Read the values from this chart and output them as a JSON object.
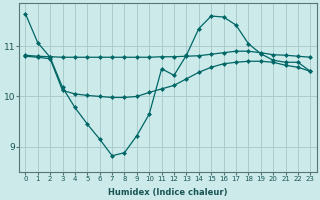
{
  "xlabel": "Humidex (Indice chaleur)",
  "bg_color": "#cceaea",
  "grid_color": "#aacccc",
  "line_color": "#006666",
  "xlim": [
    -0.5,
    23.5
  ],
  "ylim": [
    8.5,
    11.85
  ],
  "yticks": [
    9,
    10,
    11
  ],
  "xticks": [
    0,
    1,
    2,
    3,
    4,
    5,
    6,
    7,
    8,
    9,
    10,
    11,
    12,
    13,
    14,
    15,
    16,
    17,
    18,
    19,
    20,
    21,
    22,
    23
  ],
  "line1_x": [
    0,
    1,
    2,
    3,
    4,
    5,
    6,
    7,
    8,
    9,
    10,
    11,
    12,
    13,
    14,
    15,
    16,
    17,
    18,
    19,
    20,
    21,
    22,
    23
  ],
  "line1_y": [
    11.65,
    11.07,
    10.78,
    10.18,
    9.78,
    9.45,
    9.15,
    8.82,
    8.88,
    9.22,
    9.65,
    10.55,
    10.42,
    10.82,
    11.35,
    11.6,
    11.58,
    11.42,
    11.05,
    10.85,
    10.72,
    10.68,
    10.68,
    10.5
  ],
  "line2_x": [
    0,
    1,
    2,
    3,
    4,
    5,
    6,
    7,
    8,
    9,
    10,
    11,
    12,
    13,
    14,
    15,
    16,
    17,
    18,
    19,
    20,
    21,
    22,
    23
  ],
  "line2_y": [
    10.82,
    10.8,
    10.79,
    10.78,
    10.78,
    10.78,
    10.78,
    10.78,
    10.78,
    10.78,
    10.78,
    10.79,
    10.79,
    10.8,
    10.81,
    10.84,
    10.87,
    10.9,
    10.9,
    10.87,
    10.83,
    10.82,
    10.8,
    10.78
  ],
  "line3_x": [
    0,
    1,
    2,
    3,
    4,
    5,
    6,
    7,
    8,
    9,
    10,
    11,
    12,
    13,
    14,
    15,
    16,
    17,
    18,
    19,
    20,
    21,
    22,
    23
  ],
  "line3_y": [
    10.8,
    10.78,
    10.75,
    10.12,
    10.05,
    10.02,
    10.0,
    9.98,
    9.98,
    10.0,
    10.08,
    10.15,
    10.22,
    10.35,
    10.48,
    10.58,
    10.65,
    10.68,
    10.7,
    10.7,
    10.68,
    10.62,
    10.58,
    10.5
  ]
}
